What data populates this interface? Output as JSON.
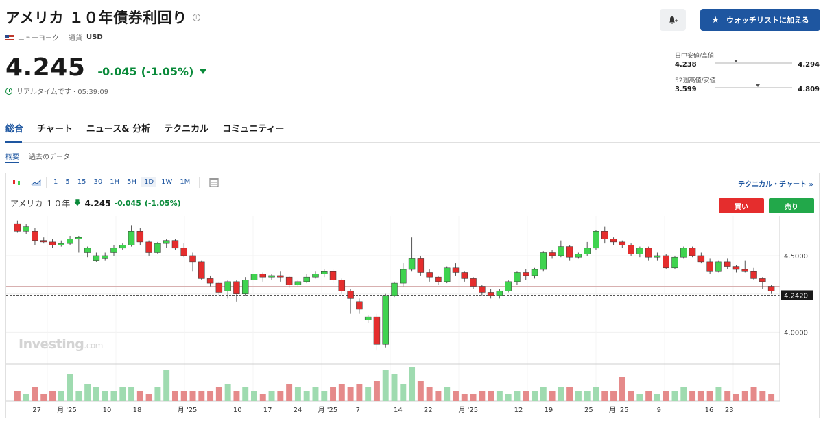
{
  "header": {
    "title": "アメリカ １０年債券利回り",
    "location": "ニューヨーク",
    "currency_label": "通貨",
    "currency": "USD",
    "price": "4.245",
    "change": "-0.045",
    "change_pct": "(-1.05%)",
    "realtime": "リアルタイムです · 05:39:09"
  },
  "actions": {
    "watchlist_label": "ウォッチリストに加える"
  },
  "ranges": {
    "day": {
      "label": "日中安値/高値",
      "low": "4.238",
      "high": "4.294",
      "position": 0.25
    },
    "week52": {
      "label": "52週高値/安値",
      "low": "3.599",
      "high": "4.809",
      "position": 0.53
    }
  },
  "tabs": [
    "総合",
    "チャート",
    "ニュース& 分析",
    "テクニカル",
    "コミュニティー"
  ],
  "subtabs": [
    "概要",
    "過去のデータ"
  ],
  "chart_toolbar": {
    "timeframes": [
      "1",
      "5",
      "15",
      "30",
      "1H",
      "5H",
      "1D",
      "1W",
      "1M"
    ],
    "active_timeframe": "1D",
    "tech_link": "テクニカル・チャート »"
  },
  "chart_header": {
    "name": "アメリカ １０年",
    "price": "4.245",
    "change": "-0.045",
    "change_pct": "(-1.05%)"
  },
  "trade": {
    "buy": "買い",
    "sell": "売り"
  },
  "watermark": {
    "brand": "Investing",
    "suffix": ".com"
  },
  "colors": {
    "up": "#3fd34f",
    "down": "#e52d2d",
    "accent": "#1e56a0",
    "vol_up": "#9fdbb0",
    "vol_down": "#e58a8a"
  },
  "chart_data": {
    "type": "candlestick",
    "y_ticks": [
      4.5,
      4.0
    ],
    "y_tick_labels": [
      "4.5000",
      "4.0000"
    ],
    "current_price_label": "4.2420",
    "current_price": 4.242,
    "reference_line": 4.3,
    "ylim": [
      3.8,
      4.76
    ],
    "x_tick_labels": [
      {
        "label": "27",
        "i": 1
      },
      {
        "label": "月 '25",
        "i": 4
      },
      {
        "label": "10",
        "i": 8
      },
      {
        "label": "18",
        "i": 11
      },
      {
        "label": "月 '25",
        "i": 16
      },
      {
        "label": "10",
        "i": 21
      },
      {
        "label": "17",
        "i": 24
      },
      {
        "label": "24",
        "i": 27
      },
      {
        "label": "月 '25",
        "i": 30
      },
      {
        "label": "7",
        "i": 33
      },
      {
        "label": "14",
        "i": 37
      },
      {
        "label": "22",
        "i": 40
      },
      {
        "label": "月 '25",
        "i": 44
      },
      {
        "label": "12",
        "i": 49
      },
      {
        "label": "19",
        "i": 52
      },
      {
        "label": "25",
        "i": 56
      },
      {
        "label": "月 '25",
        "i": 59
      },
      {
        "label": "9",
        "i": 63
      },
      {
        "label": "16",
        "i": 68
      },
      {
        "label": "23",
        "i": 70
      }
    ],
    "candles": [
      [
        4.71,
        4.66,
        4.73,
        4.65,
        3
      ],
      [
        4.66,
        4.69,
        4.71,
        4.64,
        2
      ],
      [
        4.66,
        4.6,
        4.68,
        4.57,
        4
      ],
      [
        4.6,
        4.59,
        4.62,
        4.58,
        2
      ],
      [
        4.59,
        4.57,
        4.61,
        4.55,
        3
      ],
      [
        4.57,
        4.58,
        4.6,
        4.56,
        3
      ],
      [
        4.58,
        4.61,
        4.63,
        4.57,
        8
      ],
      [
        4.61,
        4.62,
        4.63,
        4.52,
        3
      ],
      [
        4.52,
        4.55,
        4.56,
        4.49,
        5
      ],
      [
        4.47,
        4.5,
        4.52,
        4.46,
        4
      ],
      [
        4.48,
        4.5,
        4.52,
        4.47,
        3
      ],
      [
        4.52,
        4.55,
        4.57,
        4.5,
        3
      ],
      [
        4.55,
        4.57,
        4.58,
        4.54,
        4
      ],
      [
        4.57,
        4.66,
        4.7,
        4.56,
        4
      ],
      [
        4.66,
        4.59,
        4.68,
        4.57,
        3
      ],
      [
        4.59,
        4.52,
        4.6,
        4.5,
        2
      ],
      [
        4.52,
        4.58,
        4.59,
        4.51,
        4
      ],
      [
        4.58,
        4.6,
        4.61,
        4.55,
        9
      ],
      [
        4.6,
        4.55,
        4.61,
        4.54,
        3
      ],
      [
        4.55,
        4.5,
        4.58,
        4.49,
        3
      ],
      [
        4.5,
        4.46,
        4.52,
        4.4,
        3
      ],
      [
        4.46,
        4.35,
        4.47,
        4.34,
        3
      ],
      [
        4.35,
        4.32,
        4.37,
        4.3,
        3
      ],
      [
        4.32,
        4.26,
        4.33,
        4.24,
        4
      ],
      [
        4.27,
        4.33,
        4.34,
        4.22,
        5
      ],
      [
        4.33,
        4.25,
        4.34,
        4.2,
        3
      ],
      [
        4.25,
        4.34,
        4.36,
        4.24,
        4
      ]
    ],
    "volume_note": "bars scaled 0-10"
  }
}
